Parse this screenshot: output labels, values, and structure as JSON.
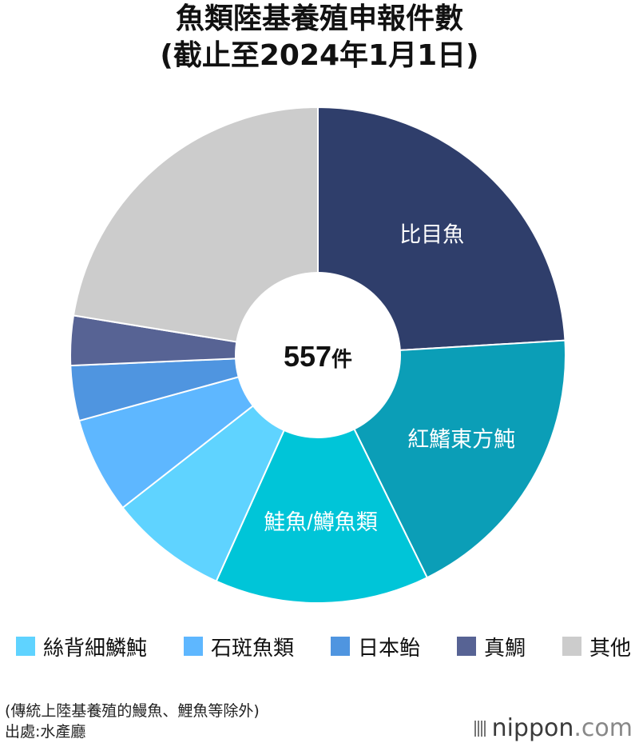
{
  "title": {
    "line1": "魚類陸基養殖申報件數",
    "line2": "(截止至2024年1月1日)"
  },
  "center_label": {
    "number": "557",
    "unit": "件"
  },
  "chart_data": {
    "type": "pie",
    "total": 557,
    "unit": "件",
    "slices": [
      {
        "label": "比目魚",
        "value": 134,
        "color": "#2f3e6b",
        "inside_label": true
      },
      {
        "label": "紅鰭東方魨",
        "value": 104,
        "color": "#0b9eb7",
        "inside_label": true
      },
      {
        "label": "鮭魚/鱒魚類",
        "value": 78,
        "color": "#00c5d8",
        "inside_label": true
      },
      {
        "label": "絲背細鱗魨",
        "value": 43,
        "color": "#5fd3ff",
        "inside_label": false
      },
      {
        "label": "石斑魚類",
        "value": 35,
        "color": "#5eb7ff",
        "inside_label": false
      },
      {
        "label": "日本鲐",
        "value": 20,
        "color": "#4f95e0",
        "inside_label": false
      },
      {
        "label": "真鯛",
        "value": 18,
        "color": "#576394",
        "inside_label": false
      },
      {
        "label": "其他",
        "value": 125,
        "color": "#cccccc",
        "inside_label": false
      }
    ]
  },
  "legend": [
    {
      "label": "絲背細鱗魨",
      "color": "#5fd3ff"
    },
    {
      "label": "石斑魚類",
      "color": "#5eb7ff"
    },
    {
      "label": "日本鲐",
      "color": "#4f95e0"
    },
    {
      "label": "真鯛",
      "color": "#576394"
    },
    {
      "label": "其他",
      "color": "#cccccc"
    }
  ],
  "footnote": "(傳統上陸基養殖的鰻魚、鯉魚等除外)",
  "source": "出處:水產廳",
  "brand": {
    "name": "nippon",
    "suffix": ".com"
  }
}
